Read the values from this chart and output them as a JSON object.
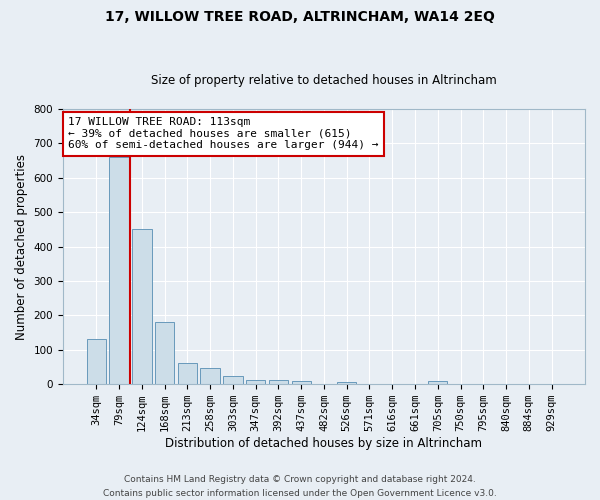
{
  "title": "17, WILLOW TREE ROAD, ALTRINCHAM, WA14 2EQ",
  "subtitle": "Size of property relative to detached houses in Altrincham",
  "xlabel": "Distribution of detached houses by size in Altrincham",
  "ylabel": "Number of detached properties",
  "bin_labels": [
    "34sqm",
    "79sqm",
    "124sqm",
    "168sqm",
    "213sqm",
    "258sqm",
    "303sqm",
    "347sqm",
    "392sqm",
    "437sqm",
    "482sqm",
    "526sqm",
    "571sqm",
    "616sqm",
    "661sqm",
    "705sqm",
    "750sqm",
    "795sqm",
    "840sqm",
    "884sqm",
    "929sqm"
  ],
  "bar_heights": [
    130,
    660,
    450,
    182,
    63,
    48,
    25,
    12,
    13,
    8,
    0,
    6,
    0,
    0,
    0,
    8,
    0,
    0,
    0,
    0,
    0
  ],
  "bar_color": "#ccdde8",
  "bar_edge_color": "#6899bb",
  "vline_color": "#cc0000",
  "ylim": [
    0,
    800
  ],
  "yticks": [
    0,
    100,
    200,
    300,
    400,
    500,
    600,
    700,
    800
  ],
  "annotation_text": "17 WILLOW TREE ROAD: 113sqm\n← 39% of detached houses are smaller (615)\n60% of semi-detached houses are larger (944) →",
  "annotation_box_color": "white",
  "annotation_box_edge": "#cc0000",
  "footer_line1": "Contains HM Land Registry data © Crown copyright and database right 2024.",
  "footer_line2": "Contains public sector information licensed under the Open Government Licence v3.0.",
  "bg_color": "#e8eef4",
  "grid_color": "white",
  "title_fontsize": 10,
  "subtitle_fontsize": 8.5,
  "ylabel_fontsize": 8.5,
  "xlabel_fontsize": 8.5,
  "tick_fontsize": 7.5,
  "annotation_fontsize": 8,
  "footer_fontsize": 6.5
}
